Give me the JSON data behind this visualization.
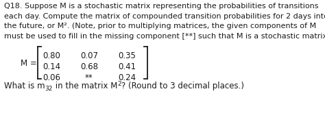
{
  "title_lines": [
    "Q18. Suppose M is a stochastic matrix representing the probabilities of transitions",
    "each day. Compute the matrix of compounded transition probabilities for 2 days into",
    "the future, or M². (Note, prior to multiplying matrices, the given components of M",
    "must be used to fill in the missing component [**] such that M is a stochastic matrix.)"
  ],
  "matrix_rows": [
    [
      "0.80",
      "0.07",
      "0.35"
    ],
    [
      "0.14",
      "0.68",
      "0.41"
    ],
    [
      "0.06",
      "**",
      "0.24"
    ]
  ],
  "bg_color": "#ffffff",
  "text_color": "#1a1a1a",
  "font_size_body": 8.0,
  "font_size_matrix": 8.5,
  "font_size_question": 8.5,
  "font_size_sub": 6.5
}
